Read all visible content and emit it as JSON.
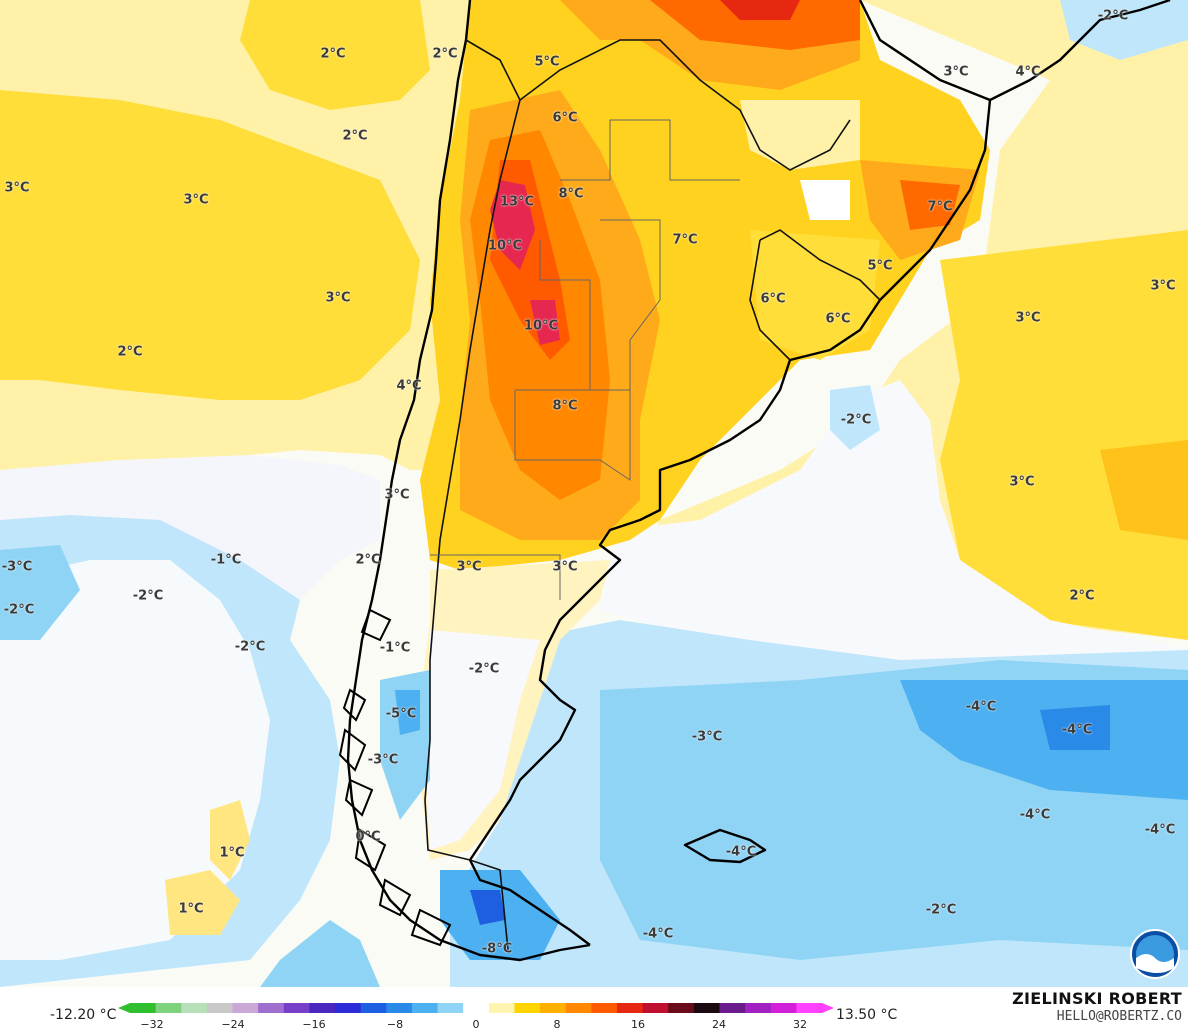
{
  "map": {
    "labels": [
      {
        "text": "2°C",
        "pos": [
          333,
          54
        ]
      },
      {
        "text": "2°C",
        "pos": [
          445,
          54
        ]
      },
      {
        "text": "2°C",
        "pos": [
          355,
          136
        ]
      },
      {
        "text": "3°C",
        "pos": [
          17,
          188
        ]
      },
      {
        "text": "3°C",
        "pos": [
          196,
          200
        ]
      },
      {
        "text": "3°C",
        "pos": [
          338,
          298
        ]
      },
      {
        "text": "2°C",
        "pos": [
          130,
          352
        ]
      },
      {
        "text": "4°C",
        "pos": [
          409,
          386
        ]
      },
      {
        "text": "3°C",
        "pos": [
          397,
          495
        ]
      },
      {
        "text": "2°C",
        "pos": [
          368,
          560
        ]
      },
      {
        "text": "3°C",
        "pos": [
          469,
          567
        ]
      },
      {
        "text": "3°C",
        "pos": [
          565,
          567
        ]
      },
      {
        "text": "5°C",
        "pos": [
          547,
          62
        ]
      },
      {
        "text": "6°C",
        "pos": [
          565,
          118
        ]
      },
      {
        "text": "8°C",
        "pos": [
          571,
          194
        ]
      },
      {
        "text": "13°C",
        "pos": [
          517,
          202
        ]
      },
      {
        "text": "10°C",
        "pos": [
          505,
          246
        ]
      },
      {
        "text": "10°C",
        "pos": [
          541,
          326
        ]
      },
      {
        "text": "8°C",
        "pos": [
          565,
          406
        ]
      },
      {
        "text": "7°C",
        "pos": [
          685,
          240
        ]
      },
      {
        "text": "3°C",
        "pos": [
          956,
          72
        ]
      },
      {
        "text": "4°C",
        "pos": [
          1028,
          72
        ]
      },
      {
        "text": "-2°C",
        "pos": [
          1113,
          16
        ]
      },
      {
        "text": "7°C",
        "pos": [
          940,
          207
        ]
      },
      {
        "text": "5°C",
        "pos": [
          880,
          266
        ]
      },
      {
        "text": "6°C",
        "pos": [
          773,
          299
        ]
      },
      {
        "text": "6°C",
        "pos": [
          838,
          319
        ]
      },
      {
        "text": "3°C",
        "pos": [
          1163,
          286
        ]
      },
      {
        "text": "3°C",
        "pos": [
          1028,
          318
        ]
      },
      {
        "text": "-2°C",
        "pos": [
          856,
          420
        ]
      },
      {
        "text": "3°C",
        "pos": [
          1022,
          482
        ]
      },
      {
        "text": "2°C",
        "pos": [
          1082,
          596
        ]
      },
      {
        "text": "-3°C",
        "pos": [
          17,
          567
        ]
      },
      {
        "text": "-2°C",
        "pos": [
          19,
          610
        ]
      },
      {
        "text": "-1°C",
        "pos": [
          226,
          560
        ]
      },
      {
        "text": "-2°C",
        "pos": [
          148,
          596
        ]
      },
      {
        "text": "-2°C",
        "pos": [
          250,
          647
        ]
      },
      {
        "text": "-1°C",
        "pos": [
          395,
          648
        ]
      },
      {
        "text": "-2°C",
        "pos": [
          484,
          669
        ]
      },
      {
        "text": "-5°C",
        "pos": [
          401,
          714
        ]
      },
      {
        "text": "-3°C",
        "pos": [
          383,
          760
        ]
      },
      {
        "text": "0°C",
        "pos": [
          368,
          837
        ]
      },
      {
        "text": "1°C",
        "pos": [
          232,
          853
        ]
      },
      {
        "text": "1°C",
        "pos": [
          191,
          909
        ]
      },
      {
        "text": "-3°C",
        "pos": [
          707,
          737
        ]
      },
      {
        "text": "-4°C",
        "pos": [
          981,
          707
        ]
      },
      {
        "text": "-4°C",
        "pos": [
          1077,
          730
        ]
      },
      {
        "text": "-4°C",
        "pos": [
          1035,
          815
        ]
      },
      {
        "text": "-4°C",
        "pos": [
          1160,
          830
        ]
      },
      {
        "text": "-4°C",
        "pos": [
          741,
          852
        ]
      },
      {
        "text": "-2°C",
        "pos": [
          941,
          910
        ]
      },
      {
        "text": "-4°C",
        "pos": [
          658,
          934
        ]
      },
      {
        "text": "-8°C",
        "pos": [
          497,
          949
        ]
      }
    ]
  },
  "colorbar": {
    "min_label": "-12.20 °C",
    "max_label": "13.50 °C",
    "ticks": [
      "−32",
      "−24",
      "−16",
      "−8",
      "0",
      "8",
      "16",
      "24",
      "32"
    ],
    "colors": [
      "#2fbf2f",
      "#7fd37f",
      "#b8e0b8",
      "#c8c8c8",
      "#c9a8d8",
      "#9f6fd0",
      "#7a3fc8",
      "#4a28c0",
      "#2b2bd8",
      "#1e5ee0",
      "#2a8ae8",
      "#4db0f0",
      "#8fd4f5",
      "#ffffff",
      "#fff3b0",
      "#ffd400",
      "#ffb000",
      "#ff8800",
      "#ff5a00",
      "#e62810",
      "#c01030",
      "#6a0a1a",
      "#1a0a10",
      "#6a1a8a",
      "#a020c0",
      "#d020d8",
      "#ff40ff"
    ]
  },
  "author": {
    "name": "ZIELINSKI ROBERT",
    "email": "HELLO@ROBERTZ.CO"
  },
  "logo": {
    "icon": "noaa-logo-icon",
    "text": "NOAA"
  }
}
